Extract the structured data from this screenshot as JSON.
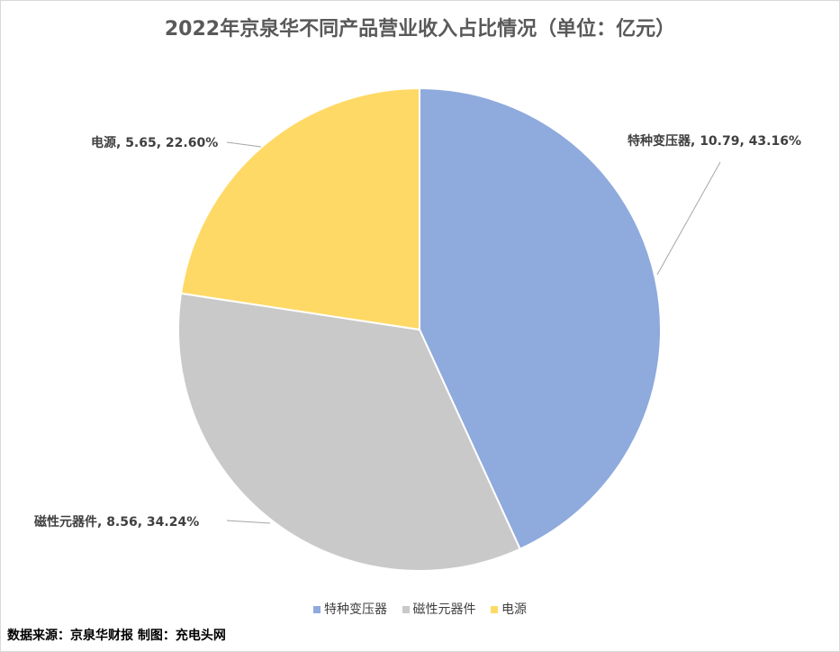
{
  "chart_data": {
    "type": "pie",
    "title": "2022年京泉华不同产品营业收入占比情况（单位：亿元）",
    "slices": [
      {
        "name": "特种变压器",
        "value": 10.79,
        "percent": "43.16%",
        "label": "特种变压器, 10.79, 43.16%",
        "color": "#8faadc"
      },
      {
        "name": "磁性元器件",
        "value": 8.56,
        "percent": "34.24%",
        "label": "磁性元器件, 8.56, 34.24%",
        "color": "#c9c9c9"
      },
      {
        "name": "电源",
        "value": 5.65,
        "percent": "22.60%",
        "label": "电源, 5.65, 22.60%",
        "color": "#ffd966"
      }
    ],
    "legend_position": "bottom"
  },
  "footer": {
    "source_text": "数据来源：京泉华财报  制图：充电头网"
  }
}
